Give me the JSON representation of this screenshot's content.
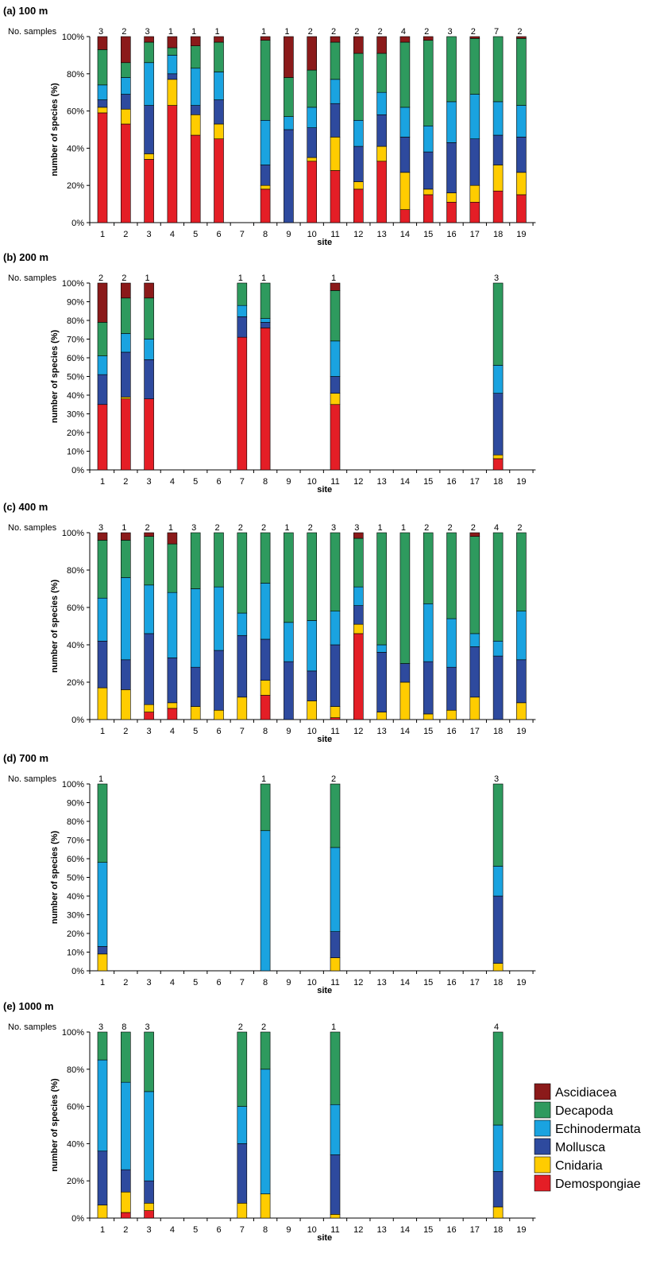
{
  "colors": {
    "Demospongiae": "#e41e26",
    "Cnidaria": "#ffcc00",
    "Mollusca": "#2e4a9e",
    "Echinodermata": "#1aa3e0",
    "Decapoda": "#2e9a5e",
    "Ascidiacea": "#8b1a1a"
  },
  "legend": [
    "Ascidiacea",
    "Decapoda",
    "Echinodermata",
    "Mollusca",
    "Cnidaria",
    "Demospongiae"
  ],
  "chart_data": [
    {
      "type": "bar",
      "stacked": true,
      "title": "(a)  100 m",
      "samples_label": "No. samples",
      "xlabel": "site",
      "ylabel": "number of species (%)",
      "ylim": [
        0,
        100
      ],
      "ytick_step": 20,
      "categories": [
        "1",
        "2",
        "3",
        "4",
        "5",
        "6",
        "7",
        "8",
        "9",
        "10",
        "11",
        "12",
        "13",
        "14",
        "15",
        "16",
        "17",
        "18",
        "19"
      ],
      "samples": [
        "3",
        "2",
        "3",
        "1",
        "1",
        "1",
        "",
        "1",
        "1",
        "2",
        "2",
        "2",
        "2",
        "4",
        "2",
        "3",
        "2",
        "7",
        "2"
      ],
      "series": [
        {
          "name": "Demospongiae",
          "values": [
            59,
            53,
            34,
            63,
            47,
            45,
            null,
            18,
            0,
            33,
            28,
            18,
            33,
            7,
            15,
            11,
            11,
            17,
            15
          ]
        },
        {
          "name": "Cnidaria",
          "values": [
            3,
            8,
            3,
            14,
            11,
            8,
            null,
            2,
            0,
            2,
            18,
            4,
            8,
            20,
            3,
            5,
            9,
            14,
            12
          ]
        },
        {
          "name": "Mollusca",
          "values": [
            4,
            8,
            26,
            3,
            5,
            13,
            null,
            11,
            50,
            16,
            18,
            19,
            17,
            19,
            20,
            27,
            25,
            16,
            19
          ]
        },
        {
          "name": "Echinodermata",
          "values": [
            8,
            9,
            23,
            10,
            20,
            15,
            null,
            24,
            7,
            11,
            13,
            14,
            12,
            16,
            14,
            22,
            24,
            18,
            17
          ]
        },
        {
          "name": "Decapoda",
          "values": [
            19,
            8,
            11,
            4,
            12,
            16,
            null,
            43,
            21,
            20,
            20,
            36,
            21,
            35,
            46,
            35,
            30,
            35,
            36
          ]
        },
        {
          "name": "Ascidiacea",
          "values": [
            7,
            14,
            3,
            6,
            5,
            3,
            null,
            2,
            22,
            18,
            3,
            9,
            9,
            3,
            2,
            0,
            1,
            0,
            1
          ]
        }
      ]
    },
    {
      "type": "bar",
      "stacked": true,
      "title": "(b)  200 m",
      "samples_label": "No. samples",
      "xlabel": "site",
      "ylabel": "number of species (%)",
      "ylim": [
        0,
        100
      ],
      "ytick_step": 10,
      "categories": [
        "1",
        "2",
        "3",
        "4",
        "5",
        "6",
        "7",
        "8",
        "9",
        "10",
        "11",
        "12",
        "13",
        "14",
        "15",
        "16",
        "17",
        "18",
        "19"
      ],
      "samples": [
        "2",
        "2",
        "1",
        "",
        "",
        "",
        "1",
        "1",
        "",
        "",
        "1",
        "",
        "",
        "",
        "",
        "",
        "",
        "3",
        ""
      ],
      "series": [
        {
          "name": "Demospongiae",
          "values": [
            35,
            38,
            38,
            null,
            null,
            null,
            71,
            76,
            null,
            null,
            35,
            null,
            null,
            null,
            null,
            null,
            null,
            6,
            null
          ]
        },
        {
          "name": "Cnidaria",
          "values": [
            0,
            1,
            0,
            null,
            null,
            null,
            0,
            0,
            null,
            null,
            6,
            null,
            null,
            null,
            null,
            null,
            null,
            2,
            null
          ]
        },
        {
          "name": "Mollusca",
          "values": [
            16,
            24,
            21,
            null,
            null,
            null,
            11,
            3,
            null,
            null,
            9,
            null,
            null,
            null,
            null,
            null,
            null,
            33,
            null
          ]
        },
        {
          "name": "Echinodermata",
          "values": [
            10,
            10,
            11,
            null,
            null,
            null,
            6,
            2,
            null,
            null,
            19,
            null,
            null,
            null,
            null,
            null,
            null,
            15,
            null
          ]
        },
        {
          "name": "Decapoda",
          "values": [
            18,
            19,
            22,
            null,
            null,
            null,
            12,
            19,
            null,
            null,
            27,
            null,
            null,
            null,
            null,
            null,
            null,
            44,
            null
          ]
        },
        {
          "name": "Ascidiacea",
          "values": [
            21,
            8,
            8,
            null,
            null,
            null,
            0,
            0,
            null,
            null,
            4,
            null,
            null,
            null,
            null,
            null,
            null,
            0,
            null
          ]
        }
      ]
    },
    {
      "type": "bar",
      "stacked": true,
      "title": "(c)  400 m",
      "samples_label": "No. samples",
      "xlabel": "site",
      "ylabel": "number of species (%)",
      "ylim": [
        0,
        100
      ],
      "ytick_step": 20,
      "categories": [
        "1",
        "2",
        "3",
        "4",
        "5",
        "6",
        "7",
        "8",
        "9",
        "10",
        "11",
        "12",
        "13",
        "14",
        "15",
        "16",
        "17",
        "18",
        "19"
      ],
      "samples": [
        "3",
        "1",
        "2",
        "1",
        "3",
        "2",
        "2",
        "2",
        "1",
        "2",
        "3",
        "3",
        "1",
        "1",
        "2",
        "2",
        "2",
        "4",
        "2"
      ],
      "series": [
        {
          "name": "Demospongiae",
          "values": [
            0,
            0,
            4,
            6,
            0,
            0,
            0,
            13,
            0,
            0,
            1,
            46,
            0,
            0,
            0,
            0,
            0,
            0,
            0
          ]
        },
        {
          "name": "Cnidaria",
          "values": [
            17,
            16,
            4,
            3,
            7,
            5,
            12,
            8,
            0,
            10,
            6,
            5,
            4,
            20,
            3,
            5,
            12,
            0,
            9
          ]
        },
        {
          "name": "Mollusca",
          "values": [
            25,
            16,
            38,
            24,
            21,
            32,
            33,
            22,
            31,
            16,
            33,
            10,
            32,
            10,
            28,
            23,
            27,
            34,
            23
          ]
        },
        {
          "name": "Echinodermata",
          "values": [
            23,
            44,
            26,
            35,
            42,
            34,
            12,
            30,
            21,
            27,
            18,
            10,
            4,
            0,
            31,
            26,
            7,
            8,
            26
          ]
        },
        {
          "name": "Decapoda",
          "values": [
            31,
            20,
            26,
            26,
            30,
            29,
            43,
            27,
            48,
            47,
            42,
            26,
            60,
            70,
            38,
            46,
            52,
            58,
            42
          ]
        },
        {
          "name": "Ascidiacea",
          "values": [
            4,
            4,
            2,
            6,
            0,
            0,
            0,
            0,
            0,
            0,
            0,
            3,
            0,
            0,
            0,
            0,
            2,
            0,
            0
          ]
        }
      ]
    },
    {
      "type": "bar",
      "stacked": true,
      "title": "(d)  700 m",
      "samples_label": "No. samples",
      "xlabel": "site",
      "ylabel": "number of species (%)",
      "ylim": [
        0,
        100
      ],
      "ytick_step": 10,
      "categories": [
        "1",
        "2",
        "3",
        "4",
        "5",
        "6",
        "7",
        "8",
        "9",
        "10",
        "11",
        "12",
        "13",
        "14",
        "15",
        "16",
        "17",
        "18",
        "19"
      ],
      "samples": [
        "1",
        "",
        "",
        "",
        "",
        "",
        "",
        "1",
        "",
        "",
        "2",
        "",
        "",
        "",
        "",
        "",
        "",
        "3",
        ""
      ],
      "series": [
        {
          "name": "Demospongiae",
          "values": [
            0,
            null,
            null,
            null,
            null,
            null,
            null,
            0,
            null,
            null,
            0,
            null,
            null,
            null,
            null,
            null,
            null,
            0,
            null
          ]
        },
        {
          "name": "Cnidaria",
          "values": [
            9,
            null,
            null,
            null,
            null,
            null,
            null,
            0,
            null,
            null,
            7,
            null,
            null,
            null,
            null,
            null,
            null,
            4,
            null
          ]
        },
        {
          "name": "Mollusca",
          "values": [
            4,
            null,
            null,
            null,
            null,
            null,
            null,
            0,
            null,
            null,
            14,
            null,
            null,
            null,
            null,
            null,
            null,
            36,
            null
          ]
        },
        {
          "name": "Echinodermata",
          "values": [
            45,
            null,
            null,
            null,
            null,
            null,
            null,
            75,
            null,
            null,
            45,
            null,
            null,
            null,
            null,
            null,
            null,
            16,
            null
          ]
        },
        {
          "name": "Decapoda",
          "values": [
            42,
            null,
            null,
            null,
            null,
            null,
            null,
            25,
            null,
            null,
            34,
            null,
            null,
            null,
            null,
            null,
            null,
            44,
            null
          ]
        },
        {
          "name": "Ascidiacea",
          "values": [
            0,
            null,
            null,
            null,
            null,
            null,
            null,
            0,
            null,
            null,
            0,
            null,
            null,
            null,
            null,
            null,
            null,
            0,
            null
          ]
        }
      ]
    },
    {
      "type": "bar",
      "stacked": true,
      "title": "(e)  1000 m",
      "samples_label": "No. samples",
      "xlabel": "site",
      "ylabel": "number of species (%)",
      "ylim": [
        0,
        100
      ],
      "ytick_step": 20,
      "categories": [
        "1",
        "2",
        "3",
        "4",
        "5",
        "6",
        "7",
        "8",
        "9",
        "10",
        "11",
        "12",
        "13",
        "14",
        "15",
        "16",
        "17",
        "18",
        "19"
      ],
      "samples": [
        "3",
        "8",
        "3",
        "",
        "",
        "",
        "2",
        "2",
        "",
        "",
        "1",
        "",
        "",
        "",
        "",
        "",
        "",
        "4",
        ""
      ],
      "series": [
        {
          "name": "Demospongiae",
          "values": [
            0,
            3,
            4,
            null,
            null,
            null,
            0,
            0,
            null,
            null,
            0,
            null,
            null,
            null,
            null,
            null,
            null,
            0,
            null
          ]
        },
        {
          "name": "Cnidaria",
          "values": [
            7,
            11,
            4,
            null,
            null,
            null,
            8,
            13,
            null,
            null,
            2,
            null,
            null,
            null,
            null,
            null,
            null,
            6,
            null
          ]
        },
        {
          "name": "Mollusca",
          "values": [
            29,
            12,
            12,
            null,
            null,
            null,
            32,
            0,
            null,
            null,
            32,
            null,
            null,
            null,
            null,
            null,
            null,
            19,
            null
          ]
        },
        {
          "name": "Echinodermata",
          "values": [
            49,
            47,
            48,
            null,
            null,
            null,
            20,
            67,
            null,
            null,
            27,
            null,
            null,
            null,
            null,
            null,
            null,
            25,
            null
          ]
        },
        {
          "name": "Decapoda",
          "values": [
            15,
            27,
            32,
            null,
            null,
            null,
            40,
            20,
            null,
            null,
            39,
            null,
            null,
            null,
            null,
            null,
            null,
            50,
            null
          ]
        },
        {
          "name": "Ascidiacea",
          "values": [
            0,
            0,
            0,
            null,
            null,
            null,
            0,
            0,
            null,
            null,
            0,
            null,
            null,
            null,
            null,
            null,
            null,
            0,
            null
          ]
        }
      ]
    }
  ]
}
